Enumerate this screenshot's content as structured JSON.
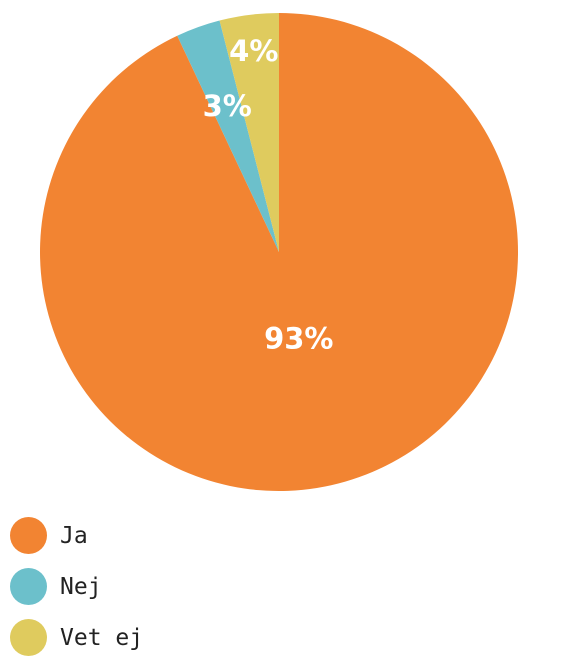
{
  "chart_data": {
    "type": "pie",
    "categories": [
      "Ja",
      "Nej",
      "Vet ej"
    ],
    "values": [
      93,
      3,
      4
    ],
    "labels": [
      "93%",
      "3%",
      "4%"
    ],
    "colors": [
      "#f28432",
      "#6cc0cb",
      "#dfcb5e"
    ],
    "title": "",
    "legend": "bottom-left",
    "start_angle": "12 o'clock",
    "direction": "clockwise"
  },
  "legend": {
    "items": [
      {
        "label": "Ja",
        "color": "#f28432"
      },
      {
        "label": "Nej",
        "color": "#6cc0cb"
      },
      {
        "label": "Vet ej",
        "color": "#dfcb5e"
      }
    ]
  }
}
